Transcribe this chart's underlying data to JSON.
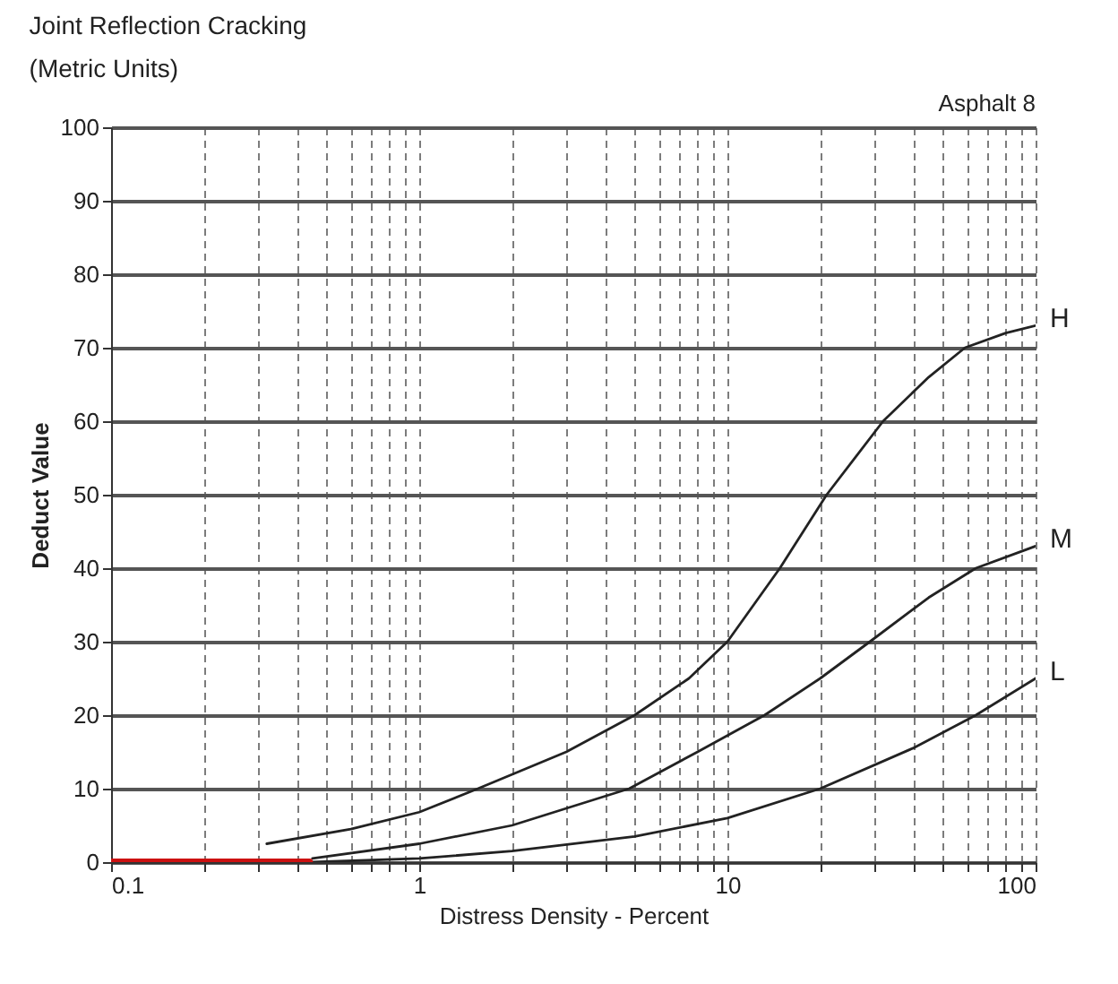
{
  "chart_data": {
    "type": "line",
    "title": "Joint Reflection Cracking",
    "subtitle": "(Metric Units)",
    "xlabel": "Distress Density - Percent",
    "ylabel": "Deduct Value",
    "annotations": [
      "Asphalt 8"
    ],
    "log": "x",
    "xlim": [
      0.1,
      100
    ],
    "ylim": [
      0,
      100
    ],
    "xticks": [
      0.1,
      {
        "value": 0.2,
        "label": null
      },
      {
        "value": 0.3,
        "label": null
      },
      {
        "value": 0.4,
        "label": null
      },
      {
        "value": 0.5,
        "label": null
      },
      {
        "value": 0.6,
        "label": null
      },
      {
        "value": 0.7,
        "label": null
      },
      {
        "value": 0.8,
        "label": null
      },
      {
        "value": 0.9,
        "label": null
      },
      1,
      {
        "value": 2,
        "label": null
      },
      {
        "value": 3,
        "label": null
      },
      {
        "value": 4,
        "label": null
      },
      {
        "value": 5,
        "label": null
      },
      {
        "value": 6,
        "label": null
      },
      {
        "value": 7,
        "label": null
      },
      {
        "value": 8,
        "label": null
      },
      {
        "value": 9,
        "label": null
      },
      10,
      {
        "value": 20,
        "label": null
      },
      {
        "value": 30,
        "label": null
      },
      {
        "value": 40,
        "label": null
      },
      {
        "value": 50,
        "label": null
      },
      {
        "value": 60,
        "label": null
      },
      {
        "value": 70,
        "label": null
      },
      {
        "value": 80,
        "label": null
      },
      {
        "value": 90,
        "label": null
      },
      100
    ],
    "yticks": [
      0,
      10,
      20,
      30,
      40,
      50,
      60,
      70,
      80,
      90,
      100
    ],
    "grid": true,
    "legend": false,
    "marker": "none",
    "line_style": "solid",
    "series": [
      {
        "name": "H",
        "color": "#222222",
        "x": [
          0.32,
          0.6,
          1,
          1.55,
          3,
          5,
          7.5,
          10,
          14.8,
          21,
          32,
          45,
          59,
          80,
          100
        ],
        "values": [
          2.5,
          4.5,
          6.8,
          10,
          15,
          20,
          25,
          30,
          40,
          50,
          60,
          66,
          70,
          72,
          73
        ]
      },
      {
        "name": "M",
        "color": "#222222",
        "x": [
          0.45,
          1,
          2,
          4.8,
          8,
          13.2,
          20,
          29,
          45,
          64,
          100
        ],
        "values": [
          0.5,
          2.5,
          5,
          10,
          15,
          20,
          25,
          30,
          36,
          40,
          43
        ]
      },
      {
        "name": "L",
        "color": "#222222",
        "x": [
          0.45,
          1,
          2,
          5,
          10,
          20,
          40,
          64,
          100
        ],
        "values": [
          0,
          0.5,
          1.5,
          3.5,
          6,
          10,
          15.5,
          20,
          25
        ]
      },
      {
        "color": "#cc1111",
        "x": [
          0.1,
          0.44
        ],
        "values": [
          0,
          0
        ]
      }
    ]
  }
}
